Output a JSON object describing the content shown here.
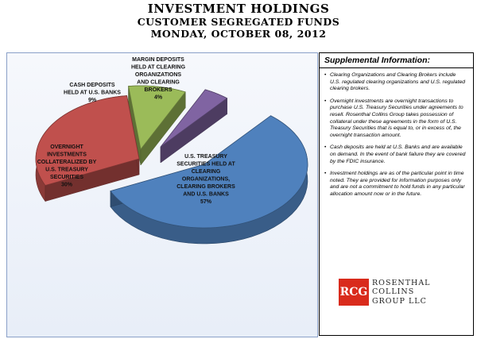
{
  "header": {
    "title": "INVESTMENT HOLDINGS",
    "subtitle": "CUSTOMER SEGREGATED FUNDS",
    "date": "MONDAY, OCTOBER 08, 2012"
  },
  "colors": {
    "treasury": "#4f81bd",
    "overnight": "#c0504d",
    "cash": "#9bbb59",
    "margin": "#8064a2",
    "panel_border": "#8aa0c8",
    "logo_red": "#d92b1c"
  },
  "chart_data": {
    "type": "pie",
    "title": "",
    "slices": [
      {
        "lines": [
          "U.S. TREASURY",
          "SECURITIES HELD AT",
          "CLEARING",
          "ORGANIZATIONS,",
          "CLEARING BROKERS",
          "AND U.S. BANKS",
          "57%"
        ],
        "value": 57,
        "color": "#4f81bd"
      },
      {
        "lines": [
          "OVERNIGHT",
          "INVESTMENTS",
          "COLLATERALIZED BY",
          "U.S. TREASURY",
          "SECURITIES",
          "30%"
        ],
        "value": 30,
        "color": "#c0504d"
      },
      {
        "lines": [
          "CASH DEPOSITS",
          "HELD AT U.S. BANKS",
          "9%"
        ],
        "value": 9,
        "color": "#9bbb59"
      },
      {
        "lines": [
          "MARGIN DEPOSITS",
          "HELD AT CLEARING",
          "ORGANIZATIONS",
          "AND CLEARING",
          "BROKERS",
          "4%"
        ],
        "value": 4,
        "color": "#8064a2"
      }
    ]
  },
  "info": {
    "title": "Supplemental Information:",
    "notes": [
      "Clearing Organizations and Clearing Brokers include U.S. regulated clearing organizations and U.S. regulated clearing brokers.",
      "Overnight investments are  overnight transactions to purchase U.S. Treasury Securities under agreements to resell.  Rosenthal Collins Group takes possession of collateral under these agreements in the form of U.S. Treasury Securities that is equal to, or in excess of, the overnight transaction amount.",
      "Cash deposits are held at U.S. Banks and are available on demand.  In the event of  bank failure they are covered by the FDIC insurance.",
      "Investment holdings are as of the particular point in time noted. They are provided for information purposes only and are not a commitment to hold funds in any particular allocation amount now or in the future."
    ]
  },
  "logo": {
    "mark": "RCG",
    "lines": [
      "ROSENTHAL",
      "COLLINS",
      "GROUP LLC"
    ]
  }
}
